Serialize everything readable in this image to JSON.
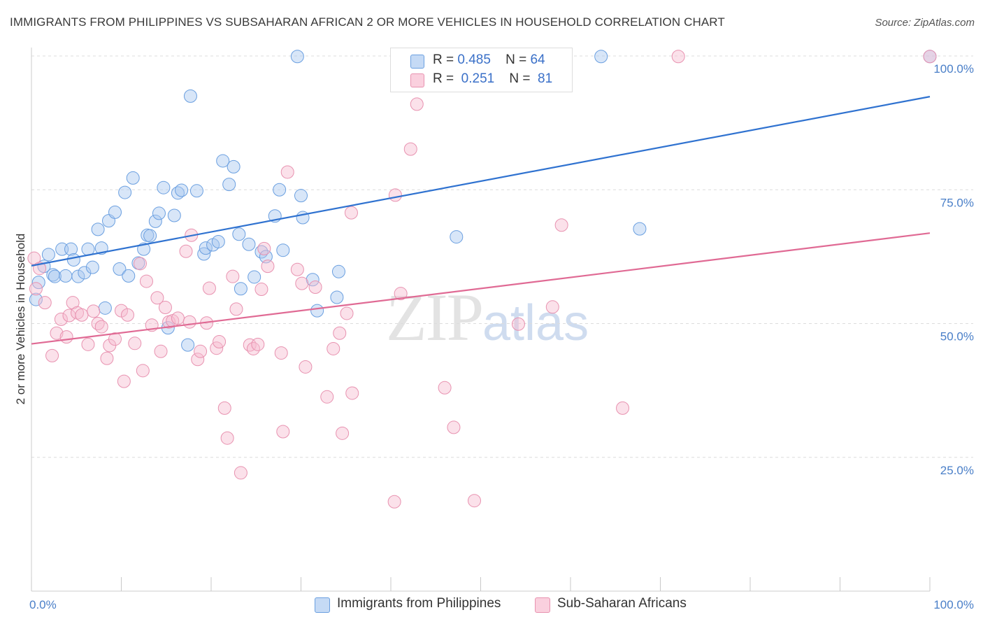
{
  "title": "IMMIGRANTS FROM PHILIPPINES VS SUBSAHARAN AFRICAN 2 OR MORE VEHICLES IN HOUSEHOLD CORRELATION CHART",
  "source": "Source: ZipAtlas.com",
  "watermark": {
    "zip": "ZIP",
    "atlas": "atlas"
  },
  "legend": {
    "rows": [
      {
        "r_label": "R =",
        "r_value": "0.485",
        "n_label": "N =",
        "n_value": "64",
        "color": "#a9c8ef"
      },
      {
        "r_label": "R =",
        "r_value": "0.251",
        "n_label": "N =",
        "n_value": "81",
        "color": "#f7bcd0"
      }
    ]
  },
  "bottom_legend": [
    {
      "label": "Immigrants from Philippines",
      "color": "#a9c8ef"
    },
    {
      "label": "Sub-Saharan Africans",
      "color": "#f7bcd0"
    }
  ],
  "chart_data": {
    "type": "scatter",
    "title": "IMMIGRANTS FROM PHILIPPINES VS SUBSAHARAN AFRICAN 2 OR MORE VEHICLES IN HOUSEHOLD CORRELATION CHART",
    "xlabel": "",
    "ylabel": "2 or more Vehicles in Household",
    "xlim": [
      0,
      100
    ],
    "ylim": [
      0,
      100
    ],
    "x_tick_labels": [
      {
        "value": 0,
        "label": "0.0%"
      },
      {
        "value": 100,
        "label": "100.0%"
      }
    ],
    "y_tick_labels": [
      {
        "value": 25,
        "label": "25.0%"
      },
      {
        "value": 50,
        "label": "50.0%"
      },
      {
        "value": 75,
        "label": "75.0%"
      },
      {
        "value": 100,
        "label": "100.0%"
      }
    ],
    "grid": true,
    "series": [
      {
        "name": "Immigrants from Philippines",
        "color": "#6a9fe0",
        "fill": "#a9c8ef",
        "trendline": {
          "x": [
            0,
            100
          ],
          "y": [
            60.8,
            92.4
          ],
          "color": "#2f72d0"
        },
        "points": [
          [
            0.5,
            54.5
          ],
          [
            1.4,
            60.7
          ],
          [
            1.9,
            62.9
          ],
          [
            2.4,
            59.1
          ],
          [
            2.6,
            58.8
          ],
          [
            3.4,
            63.9
          ],
          [
            3.8,
            58.9
          ],
          [
            4.4,
            63.9
          ],
          [
            4.7,
            61.9
          ],
          [
            5.2,
            58.8
          ],
          [
            5.9,
            59.5
          ],
          [
            6.3,
            63.9
          ],
          [
            6.8,
            60.5
          ],
          [
            7.4,
            67.6
          ],
          [
            7.8,
            64.1
          ],
          [
            8.2,
            52.9
          ],
          [
            8.6,
            69.2
          ],
          [
            9.3,
            70.8
          ],
          [
            9.8,
            60.2
          ],
          [
            10.4,
            74.5
          ],
          [
            10.8,
            58.9
          ],
          [
            11.3,
            77.2
          ],
          [
            11.9,
            61.3
          ],
          [
            12.5,
            63.9
          ],
          [
            12.9,
            66.5
          ],
          [
            13.2,
            66.4
          ],
          [
            13.8,
            69.1
          ],
          [
            14.2,
            70.6
          ],
          [
            14.7,
            75.4
          ],
          [
            15.2,
            49.2
          ],
          [
            15.9,
            70.2
          ],
          [
            16.3,
            74.4
          ],
          [
            16.7,
            74.9
          ],
          [
            17.4,
            46.0
          ],
          [
            17.7,
            92.5
          ],
          [
            18.4,
            74.8
          ],
          [
            19.2,
            63.0
          ],
          [
            19.4,
            64.1
          ],
          [
            20.2,
            64.7
          ],
          [
            20.8,
            65.3
          ],
          [
            21.3,
            80.4
          ],
          [
            22.0,
            76.0
          ],
          [
            22.5,
            79.3
          ],
          [
            23.1,
            66.7
          ],
          [
            23.3,
            56.5
          ],
          [
            24.2,
            64.8
          ],
          [
            24.8,
            58.7
          ],
          [
            25.6,
            63.4
          ],
          [
            26.1,
            62.5
          ],
          [
            27.1,
            70.1
          ],
          [
            27.6,
            75.0
          ],
          [
            28.0,
            63.7
          ],
          [
            29.6,
            99.9
          ],
          [
            30.0,
            73.9
          ],
          [
            30.2,
            69.8
          ],
          [
            31.3,
            58.2
          ],
          [
            31.8,
            52.4
          ],
          [
            34.0,
            54.9
          ],
          [
            34.2,
            59.7
          ],
          [
            47.3,
            66.2
          ],
          [
            63.4,
            99.9
          ],
          [
            67.7,
            67.7
          ],
          [
            100.0,
            99.9
          ],
          [
            0.8,
            57.7
          ]
        ]
      },
      {
        "name": "Sub-Saharan Africans",
        "color": "#e892b0",
        "fill": "#f7bcd0",
        "trendline": {
          "x": [
            0,
            100
          ],
          "y": [
            46.2,
            66.9
          ],
          "color": "#e06a94"
        },
        "points": [
          [
            0.3,
            62.2
          ],
          [
            0.5,
            56.5
          ],
          [
            1.5,
            53.9
          ],
          [
            2.3,
            44.0
          ],
          [
            2.8,
            48.2
          ],
          [
            3.3,
            50.8
          ],
          [
            3.9,
            47.5
          ],
          [
            4.2,
            51.5
          ],
          [
            4.6,
            53.9
          ],
          [
            5.1,
            52.0
          ],
          [
            5.6,
            51.6
          ],
          [
            6.3,
            46.1
          ],
          [
            6.9,
            52.3
          ],
          [
            7.4,
            50.0
          ],
          [
            7.8,
            49.4
          ],
          [
            8.4,
            43.5
          ],
          [
            8.7,
            45.9
          ],
          [
            9.3,
            47.1
          ],
          [
            10.0,
            52.4
          ],
          [
            10.3,
            39.2
          ],
          [
            10.7,
            51.6
          ],
          [
            11.5,
            46.3
          ],
          [
            12.1,
            61.2
          ],
          [
            12.4,
            41.2
          ],
          [
            12.8,
            57.9
          ],
          [
            13.4,
            49.7
          ],
          [
            14.0,
            54.8
          ],
          [
            14.4,
            44.8
          ],
          [
            14.9,
            53.0
          ],
          [
            15.3,
            50.3
          ],
          [
            15.7,
            50.5
          ],
          [
            16.3,
            51.0
          ],
          [
            17.2,
            63.5
          ],
          [
            17.6,
            50.3
          ],
          [
            17.8,
            66.5
          ],
          [
            18.5,
            43.3
          ],
          [
            18.8,
            44.8
          ],
          [
            19.5,
            50.1
          ],
          [
            19.8,
            56.6
          ],
          [
            20.6,
            45.4
          ],
          [
            20.9,
            46.6
          ],
          [
            21.5,
            34.2
          ],
          [
            21.8,
            28.6
          ],
          [
            22.4,
            58.8
          ],
          [
            22.8,
            52.7
          ],
          [
            23.3,
            22.1
          ],
          [
            24.3,
            46.0
          ],
          [
            24.7,
            45.3
          ],
          [
            25.2,
            46.1
          ],
          [
            25.6,
            56.4
          ],
          [
            25.9,
            64.0
          ],
          [
            26.3,
            60.7
          ],
          [
            27.8,
            44.5
          ],
          [
            28.0,
            29.8
          ],
          [
            28.5,
            78.3
          ],
          [
            29.6,
            60.1
          ],
          [
            30.1,
            57.5
          ],
          [
            30.5,
            41.9
          ],
          [
            31.6,
            56.8
          ],
          [
            32.9,
            36.3
          ],
          [
            33.6,
            45.3
          ],
          [
            34.3,
            48.2
          ],
          [
            34.6,
            29.5
          ],
          [
            35.1,
            51.9
          ],
          [
            35.7,
            37.0
          ],
          [
            35.6,
            70.7
          ],
          [
            40.4,
            16.7
          ],
          [
            40.5,
            74.0
          ],
          [
            41.1,
            55.6
          ],
          [
            42.2,
            82.6
          ],
          [
            42.9,
            91.0
          ],
          [
            46.0,
            38.0
          ],
          [
            47.0,
            30.6
          ],
          [
            49.3,
            16.9
          ],
          [
            54.2,
            49.9
          ],
          [
            58.0,
            53.1
          ],
          [
            59.0,
            68.4
          ],
          [
            65.8,
            34.2
          ],
          [
            72.0,
            99.9
          ],
          [
            100.0,
            99.9
          ],
          [
            0.9,
            60.3
          ]
        ]
      }
    ]
  }
}
